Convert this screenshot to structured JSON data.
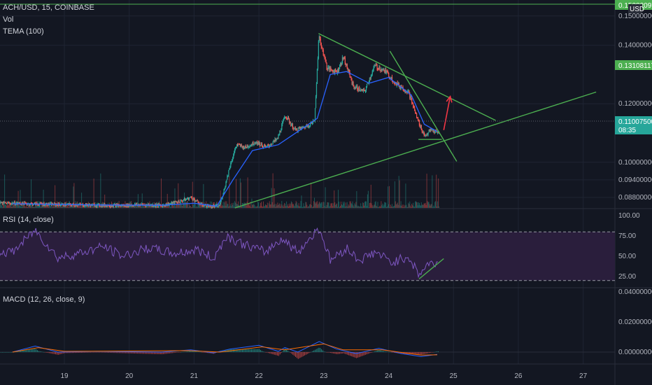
{
  "header": {
    "symbol_line": "ACH/USD, 15, COINBASE",
    "volume_label": "Vol",
    "tema_label": "TEMA (100)",
    "currency": "USD"
  },
  "rsi": {
    "label": "RSI (14, close)",
    "ticks": [
      "100.00",
      "75.00",
      "50.00",
      "25.00"
    ]
  },
  "macd": {
    "label": "MACD (12, 26, close, 9)",
    "ticks": [
      "0.04000000",
      "0.02000000",
      "0.00000000"
    ]
  },
  "price_tags": {
    "top": "0.15282097",
    "mid": "0.13108117",
    "current": "0.11007500",
    "countdown": "08:35"
  },
  "colors": {
    "background": "#131722",
    "up": "#26a69a",
    "down": "#ef5350",
    "tema": "#2962ff",
    "trendline": "#4caf50",
    "arrow": "#f23645",
    "rsi_line": "#7e57c2",
    "rsi_band": "#2a1e3c",
    "macd_line": "#2962ff",
    "signal_line": "#ff6d00"
  },
  "chart_data": {
    "type": "candlestick",
    "symbol": "ACH/USD",
    "interval": "15",
    "exchange": "COINBASE",
    "x_ticks": [
      "19",
      "20",
      "21",
      "22",
      "23",
      "24",
      "25",
      "26",
      "27"
    ],
    "y_ticks": [
      "0.15000000",
      "0.14000000",
      "0.12000000",
      "0.10000000",
      "0.09400000",
      "0.08800000"
    ],
    "ylim": [
      0.0844,
      0.1545
    ],
    "price_path": [
      {
        "day": 18.2,
        "price": 0.086
      },
      {
        "day": 18.5,
        "price": 0.0858
      },
      {
        "day": 18.8,
        "price": 0.0856
      },
      {
        "day": 19.0,
        "price": 0.0855
      },
      {
        "day": 19.3,
        "price": 0.0854
      },
      {
        "day": 19.6,
        "price": 0.0853
      },
      {
        "day": 19.9,
        "price": 0.0852
      },
      {
        "day": 20.2,
        "price": 0.0855
      },
      {
        "day": 20.5,
        "price": 0.0852
      },
      {
        "day": 20.8,
        "price": 0.0868
      },
      {
        "day": 20.95,
        "price": 0.088
      },
      {
        "day": 21.1,
        "price": 0.0855
      },
      {
        "day": 21.25,
        "price": 0.0848
      },
      {
        "day": 21.38,
        "price": 0.085
      },
      {
        "day": 21.45,
        "price": 0.09
      },
      {
        "day": 21.55,
        "price": 0.099
      },
      {
        "day": 21.65,
        "price": 0.106
      },
      {
        "day": 21.78,
        "price": 0.105
      },
      {
        "day": 21.95,
        "price": 0.107
      },
      {
        "day": 22.1,
        "price": 0.105
      },
      {
        "day": 22.28,
        "price": 0.108
      },
      {
        "day": 22.4,
        "price": 0.116
      },
      {
        "day": 22.55,
        "price": 0.111
      },
      {
        "day": 22.7,
        "price": 0.112
      },
      {
        "day": 22.85,
        "price": 0.114
      },
      {
        "day": 22.92,
        "price": 0.143
      },
      {
        "day": 23.05,
        "price": 0.132
      },
      {
        "day": 23.2,
        "price": 0.131
      },
      {
        "day": 23.3,
        "price": 0.136
      },
      {
        "day": 23.45,
        "price": 0.126
      },
      {
        "day": 23.62,
        "price": 0.124
      },
      {
        "day": 23.78,
        "price": 0.133
      },
      {
        "day": 23.95,
        "price": 0.131
      },
      {
        "day": 24.1,
        "price": 0.127
      },
      {
        "day": 24.3,
        "price": 0.124
      },
      {
        "day": 24.45,
        "price": 0.114
      },
      {
        "day": 24.55,
        "price": 0.109
      },
      {
        "day": 24.65,
        "price": 0.111
      },
      {
        "day": 24.75,
        "price": 0.11
      }
    ],
    "tema_values": [
      {
        "day": 18.2,
        "value": 0.0858
      },
      {
        "day": 19.5,
        "value": 0.0854
      },
      {
        "day": 20.5,
        "value": 0.0853
      },
      {
        "day": 21.0,
        "value": 0.086
      },
      {
        "day": 21.35,
        "value": 0.085
      },
      {
        "day": 21.6,
        "value": 0.094
      },
      {
        "day": 21.9,
        "value": 0.104
      },
      {
        "day": 22.3,
        "value": 0.106
      },
      {
        "day": 22.6,
        "value": 0.1105
      },
      {
        "day": 22.9,
        "value": 0.115
      },
      {
        "day": 23.1,
        "value": 0.13
      },
      {
        "day": 23.35,
        "value": 0.131
      },
      {
        "day": 23.7,
        "value": 0.127
      },
      {
        "day": 24.0,
        "value": 0.129
      },
      {
        "day": 24.35,
        "value": 0.123
      },
      {
        "day": 24.55,
        "value": 0.113
      },
      {
        "day": 24.75,
        "value": 0.1105
      }
    ],
    "drawings": [
      {
        "kind": "trendline",
        "from": {
          "day": 21.63,
          "price": 0.0844
        },
        "to": {
          "day": 27.2,
          "price": 0.124
        }
      },
      {
        "kind": "trendline",
        "from": {
          "day": 22.92,
          "price": 0.144
        },
        "to": {
          "day": 25.65,
          "price": 0.1143
        }
      },
      {
        "kind": "trendline",
        "from": {
          "day": 24.02,
          "price": 0.138
        },
        "to": {
          "day": 25.05,
          "price": 0.1003
        }
      },
      {
        "kind": "trendline",
        "from": {
          "day": 24.46,
          "price": 0.1078
        },
        "to": {
          "day": 24.82,
          "price": 0.1078
        }
      },
      {
        "kind": "arrow",
        "from": {
          "day": 24.85,
          "price": 0.111
        },
        "to": {
          "day": 24.95,
          "price": 0.1225
        }
      }
    ],
    "rsi_values": [
      {
        "day": 18.2,
        "value": 55
      },
      {
        "day": 18.55,
        "value": 82
      },
      {
        "day": 18.9,
        "value": 48
      },
      {
        "day": 19.3,
        "value": 55
      },
      {
        "day": 19.6,
        "value": 62
      },
      {
        "day": 19.9,
        "value": 50
      },
      {
        "day": 20.3,
        "value": 60
      },
      {
        "day": 20.7,
        "value": 53
      },
      {
        "day": 21.05,
        "value": 58
      },
      {
        "day": 21.3,
        "value": 47
      },
      {
        "day": 21.5,
        "value": 75
      },
      {
        "day": 21.75,
        "value": 65
      },
      {
        "day": 22.1,
        "value": 55
      },
      {
        "day": 22.35,
        "value": 72
      },
      {
        "day": 22.6,
        "value": 55
      },
      {
        "day": 22.93,
        "value": 85
      },
      {
        "day": 23.1,
        "value": 45
      },
      {
        "day": 23.35,
        "value": 60
      },
      {
        "day": 23.55,
        "value": 45
      },
      {
        "day": 23.8,
        "value": 55
      },
      {
        "day": 24.05,
        "value": 42
      },
      {
        "day": 24.3,
        "value": 50
      },
      {
        "day": 24.47,
        "value": 27
      },
      {
        "day": 24.6,
        "value": 40
      },
      {
        "day": 24.75,
        "value": 42
      }
    ],
    "rsi_divergence": {
      "from": {
        "day": 24.47,
        "value": 22
      },
      "to": {
        "day": 24.85,
        "value": 47
      }
    },
    "macd_values": [
      {
        "day": 18.2,
        "value": 0.0
      },
      {
        "day": 18.55,
        "value": 0.004
      },
      {
        "day": 18.9,
        "value": 0.0
      },
      {
        "day": 19.5,
        "value": 0.0005
      },
      {
        "day": 20.5,
        "value": 0.0
      },
      {
        "day": 20.95,
        "value": 0.0015
      },
      {
        "day": 21.3,
        "value": -0.0005
      },
      {
        "day": 21.55,
        "value": 0.002
      },
      {
        "day": 22.0,
        "value": 0.0045
      },
      {
        "day": 22.3,
        "value": 0.0005
      },
      {
        "day": 22.4,
        "value": 0.003
      },
      {
        "day": 22.6,
        "value": 0.0
      },
      {
        "day": 22.93,
        "value": 0.007
      },
      {
        "day": 23.2,
        "value": 0.002
      },
      {
        "day": 23.5,
        "value": -0.001
      },
      {
        "day": 23.85,
        "value": 0.0025
      },
      {
        "day": 24.2,
        "value": -0.001
      },
      {
        "day": 24.5,
        "value": -0.003
      },
      {
        "day": 24.75,
        "value": -0.0015
      }
    ],
    "signal_values": [
      {
        "day": 18.2,
        "value": 0.0
      },
      {
        "day": 18.6,
        "value": 0.003
      },
      {
        "day": 19.0,
        "value": 0.0005
      },
      {
        "day": 20.9,
        "value": 0.001
      },
      {
        "day": 21.4,
        "value": 0.0
      },
      {
        "day": 22.05,
        "value": 0.0035
      },
      {
        "day": 22.4,
        "value": 0.0015
      },
      {
        "day": 23.0,
        "value": 0.0055
      },
      {
        "day": 23.3,
        "value": 0.0015
      },
      {
        "day": 23.9,
        "value": 0.0015
      },
      {
        "day": 24.5,
        "value": -0.002
      },
      {
        "day": 24.75,
        "value": -0.0018
      }
    ]
  }
}
